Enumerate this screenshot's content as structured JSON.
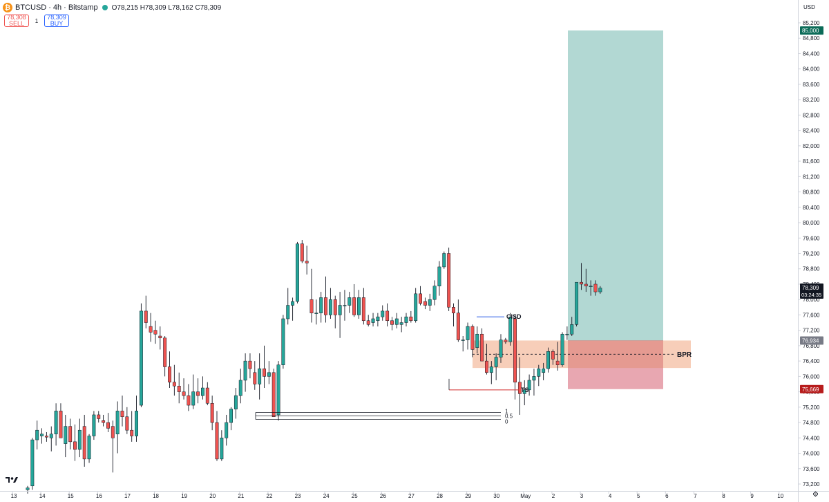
{
  "header": {
    "symbol": "BTCUSD",
    "sep1": "·",
    "interval": "4h",
    "sep2": "·",
    "exchange": "Bitstamp",
    "icon": "bitcoin-icon",
    "ohlc": {
      "o_label": "O",
      "o": "78,215",
      "h_label": "H",
      "h": "78,309",
      "l_label": "L",
      "l": "78,162",
      "c_label": "C",
      "c": "78,309"
    }
  },
  "trade": {
    "sell_price": "78,308",
    "sell_label": "SELL",
    "qty": "1",
    "buy_price": "78,309",
    "buy_label": "BUY"
  },
  "axis": {
    "currency": "USD",
    "settings_icon": "gear-icon"
  },
  "colors": {
    "up": "#26a69a",
    "down": "#ef5350",
    "target_zone": "#b2d8d3",
    "stop_zone": "#e8a7b1",
    "bpr_zone": "#f6c6ad"
  },
  "chart_data": {
    "type": "candlestick",
    "title": "BTCUSD · 4h · Bitstamp",
    "y_range": [
      72900,
      85350
    ],
    "y_ticks": [
      "85,200",
      "84,800",
      "84,400",
      "84,000",
      "83,600",
      "83,200",
      "82,800",
      "82,400",
      "82,000",
      "81,600",
      "81,200",
      "80,800",
      "80,400",
      "80,000",
      "79,600",
      "79,200",
      "78,800",
      "78,400",
      "78,000",
      "77,600",
      "77,200",
      "76,800",
      "76,400",
      "76,000",
      "75,600",
      "75,200",
      "74,800",
      "74,400",
      "74,000",
      "73,600",
      "73,200"
    ],
    "x_ticks": [
      "13",
      "14",
      "15",
      "16",
      "17",
      "18",
      "19",
      "20",
      "21",
      "22",
      "23",
      "24",
      "25",
      "26",
      "27",
      "28",
      "29",
      "30",
      "May",
      "2",
      "3",
      "4",
      "5",
      "6",
      "7",
      "8",
      "9",
      "10"
    ],
    "candles": [
      [
        73050,
        73150,
        72950,
        73100
      ],
      [
        73150,
        74400,
        73050,
        74350
      ],
      [
        74350,
        74850,
        74100,
        74600
      ],
      [
        74450,
        74650,
        74250,
        74500
      ],
      [
        74450,
        74550,
        74300,
        74420
      ],
      [
        74400,
        74700,
        74050,
        74500
      ],
      [
        74500,
        75300,
        74200,
        75100
      ],
      [
        75100,
        75300,
        74400,
        74400
      ],
      [
        74250,
        75000,
        73900,
        74700
      ],
      [
        74700,
        74900,
        74100,
        74300
      ],
      [
        74300,
        74750,
        73800,
        74100
      ],
      [
        74100,
        74900,
        73900,
        74600
      ],
      [
        74700,
        75000,
        73650,
        73850
      ],
      [
        73850,
        74500,
        73750,
        74450
      ],
      [
        74450,
        75100,
        74350,
        75000
      ],
      [
        75000,
        75100,
        74800,
        74900
      ],
      [
        74850,
        75000,
        74700,
        74800
      ],
      [
        74800,
        75050,
        74550,
        74650
      ],
      [
        74700,
        74850,
        73500,
        74400
      ],
      [
        74500,
        75350,
        74000,
        75100
      ],
      [
        75100,
        75500,
        74700,
        74950
      ],
      [
        74950,
        75200,
        74500,
        74600
      ],
      [
        74600,
        75100,
        74300,
        74450
      ],
      [
        74450,
        75500,
        74300,
        75100
      ],
      [
        75250,
        77900,
        75200,
        77700
      ],
      [
        77700,
        78100,
        77250,
        77400
      ],
      [
        77300,
        77650,
        76900,
        77150
      ],
      [
        77200,
        77450,
        76850,
        77100
      ],
      [
        77050,
        77300,
        76700,
        77000
      ],
      [
        77000,
        77050,
        76000,
        76250
      ],
      [
        76250,
        76650,
        75700,
        75850
      ],
      [
        75850,
        76300,
        75500,
        75750
      ],
      [
        75750,
        76100,
        75300,
        75600
      ],
      [
        75600,
        75950,
        75400,
        75500
      ],
      [
        75500,
        75800,
        75100,
        75250
      ],
      [
        75250,
        76050,
        75150,
        75600
      ],
      [
        75600,
        75950,
        75300,
        75500
      ],
      [
        75500,
        76000,
        75400,
        75700
      ],
      [
        75700,
        75850,
        75250,
        75300
      ],
      [
        75300,
        75500,
        74600,
        74800
      ],
      [
        74800,
        75100,
        73800,
        73850
      ],
      [
        73850,
        74600,
        73800,
        74400
      ],
      [
        74400,
        75000,
        74200,
        74800
      ],
      [
        74800,
        75200,
        74600,
        75150
      ],
      [
        75150,
        75700,
        74900,
        75500
      ],
      [
        75500,
        76200,
        75300,
        75900
      ],
      [
        75900,
        76600,
        75600,
        76400
      ],
      [
        76400,
        76600,
        75950,
        76200
      ],
      [
        76100,
        76400,
        75650,
        75800
      ],
      [
        75800,
        76600,
        75400,
        76200
      ],
      [
        76200,
        76800,
        75700,
        76000
      ],
      [
        76000,
        76400,
        75800,
        76100
      ],
      [
        76100,
        76200,
        74950,
        74950
      ],
      [
        75000,
        76400,
        74850,
        76300
      ],
      [
        76300,
        77600,
        76200,
        77500
      ],
      [
        77500,
        78300,
        77350,
        77850
      ],
      [
        77850,
        78050,
        77450,
        77950
      ],
      [
        77950,
        79500,
        77900,
        79450
      ],
      [
        79450,
        79550,
        78950,
        79000
      ],
      [
        79000,
        79400,
        78650,
        78950
      ],
      [
        78000,
        78800,
        77400,
        77650
      ],
      [
        77650,
        78000,
        77350,
        77650
      ],
      [
        77650,
        78200,
        77400,
        78050
      ],
      [
        78050,
        78600,
        77400,
        77600
      ],
      [
        77600,
        78300,
        77500,
        78000
      ],
      [
        78000,
        78100,
        77250,
        77600
      ],
      [
        77600,
        78200,
        77000,
        77850
      ],
      [
        77850,
        78250,
        77450,
        77850
      ],
      [
        77850,
        78200,
        77650,
        78050
      ],
      [
        78050,
        78400,
        77550,
        77600
      ],
      [
        77600,
        78250,
        77500,
        78050
      ],
      [
        78050,
        78300,
        77350,
        77450
      ],
      [
        77450,
        77600,
        77300,
        77350
      ],
      [
        77400,
        77650,
        77300,
        77500
      ],
      [
        77450,
        77650,
        77300,
        77550
      ],
      [
        77550,
        77850,
        77450,
        77700
      ],
      [
        77700,
        77900,
        77300,
        77450
      ],
      [
        77450,
        77550,
        77200,
        77350
      ],
      [
        77350,
        77650,
        77250,
        77500
      ],
      [
        77350,
        77550,
        77150,
        77400
      ],
      [
        77400,
        77650,
        77300,
        77550
      ],
      [
        77550,
        77700,
        77400,
        77450
      ],
      [
        77450,
        78300,
        77400,
        78150
      ],
      [
        78150,
        78350,
        77850,
        77900
      ],
      [
        77950,
        78050,
        77750,
        77850
      ],
      [
        77850,
        78150,
        77700,
        78000
      ],
      [
        78000,
        78500,
        77850,
        78350
      ],
      [
        78350,
        79000,
        78100,
        78850
      ],
      [
        78850,
        79250,
        78800,
        79200
      ],
      [
        79200,
        79350,
        77700,
        77800
      ],
      [
        77800,
        77900,
        77300,
        77650
      ],
      [
        77650,
        78000,
        76900,
        76950
      ],
      [
        76950,
        77050,
        76650,
        76950
      ],
      [
        76950,
        77400,
        76700,
        77300
      ],
      [
        77300,
        77350,
        76500,
        76700
      ],
      [
        76750,
        77300,
        76600,
        77100
      ],
      [
        77100,
        77250,
        76400,
        76400
      ],
      [
        76400,
        76850,
        76050,
        76100
      ],
      [
        76100,
        76400,
        75800,
        76250
      ],
      [
        76250,
        76600,
        75900,
        76500
      ],
      [
        76500,
        77100,
        76350,
        76950
      ],
      [
        76950,
        77000,
        76850,
        76900
      ],
      [
        76900,
        77650,
        76800,
        77550
      ],
      [
        77500,
        77600,
        75400,
        75850
      ],
      [
        75850,
        76500,
        75000,
        75550
      ],
      [
        75550,
        75900,
        75250,
        75650
      ],
      [
        75650,
        76050,
        75500,
        75900
      ],
      [
        75900,
        76200,
        75500,
        76000
      ],
      [
        76000,
        76300,
        75750,
        76200
      ],
      [
        76100,
        76350,
        75900,
        76200
      ],
      [
        76200,
        76750,
        76100,
        76650
      ],
      [
        76650,
        76700,
        76300,
        76450
      ],
      [
        76400,
        76900,
        76150,
        76300
      ],
      [
        76300,
        77150,
        76250,
        77100
      ],
      [
        77100,
        77300,
        76950,
        77100
      ],
      [
        77100,
        77550,
        77050,
        77350
      ],
      [
        77350,
        78450,
        77300,
        78450
      ],
      [
        78450,
        78950,
        78250,
        78400
      ],
      [
        78400,
        78800,
        78200,
        78350
      ],
      [
        78350,
        78500,
        78100,
        78350
      ],
      [
        78400,
        78500,
        78100,
        78200
      ],
      [
        78200,
        78350,
        78150,
        78300
      ]
    ],
    "price_labels": [
      {
        "value": 85000,
        "text": "85,000",
        "color": "#0b6b58"
      },
      {
        "value": 78309,
        "text": "78,309",
        "sub": "03:24:35",
        "color": "#131722"
      },
      {
        "value": 76934,
        "text": "76,934",
        "color": "#787b86"
      },
      {
        "value": 75669,
        "text": "75,669",
        "color": "#b71c1c"
      }
    ],
    "annotations": [
      {
        "text": "CISD"
      },
      {
        "text": "BPR"
      },
      {
        "text": "TS"
      },
      {
        "text": "1"
      },
      {
        "text": "0.5"
      },
      {
        "text": "0"
      }
    ],
    "position": {
      "entry": 76934,
      "target": 85000,
      "stop": 75669
    },
    "bpr_zone": {
      "high": 76934,
      "low": 76220,
      "mid": 76577
    },
    "cisd_level": 77550,
    "ts_level": 75650,
    "fib_levels": {
      "high": 74970,
      "low": 74860
    }
  }
}
